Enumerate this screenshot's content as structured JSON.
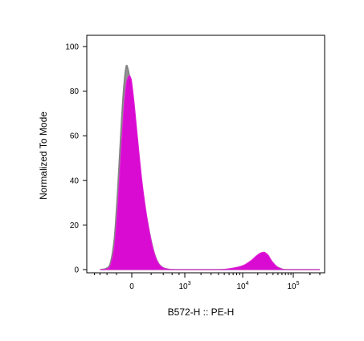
{
  "chart_data": {
    "type": "area",
    "title": "",
    "xlabel": "B572-H :: PE-H",
    "ylabel": "Normalized To Mode",
    "x_scale": "biexponential",
    "y_range": [
      0,
      100
    ],
    "y_ticks": [
      0,
      20,
      40,
      60,
      80,
      100
    ],
    "x_tick_labels": [
      {
        "value": 0,
        "base": "0",
        "exp": ""
      },
      {
        "value": 1000,
        "base": "10",
        "exp": "3"
      },
      {
        "value": 10000,
        "base": "10",
        "exp": "4"
      },
      {
        "value": 100000,
        "base": "10",
        "exp": "5"
      }
    ],
    "legend": "none",
    "grid": false,
    "series": [
      {
        "color": "#808080",
        "fill": "#8a8a8a",
        "points": [
          [
            -600,
            0
          ],
          [
            -420,
            0.5
          ],
          [
            -320,
            3
          ],
          [
            -240,
            14
          ],
          [
            -180,
            36
          ],
          [
            -130,
            62
          ],
          [
            -90,
            82
          ],
          [
            -60,
            91
          ],
          [
            -40,
            90
          ],
          [
            -20,
            86
          ],
          [
            0,
            80
          ],
          [
            20,
            70
          ],
          [
            50,
            55
          ],
          [
            90,
            38
          ],
          [
            140,
            24
          ],
          [
            200,
            13
          ],
          [
            260,
            6
          ],
          [
            320,
            2.5
          ],
          [
            400,
            0.8
          ],
          [
            500,
            0.2
          ],
          [
            700,
            0
          ],
          [
            4000,
            0
          ],
          [
            6000,
            0.3
          ],
          [
            8500,
            1.0
          ],
          [
            11000,
            1.8
          ],
          [
            15000,
            3.5
          ],
          [
            19000,
            5.5
          ],
          [
            24000,
            7.0
          ],
          [
            30000,
            6.5
          ],
          [
            38000,
            3.5
          ],
          [
            48000,
            1.2
          ],
          [
            60000,
            0.3
          ],
          [
            75000,
            0
          ],
          [
            300000,
            0
          ]
        ]
      },
      {
        "color": "#e020d8",
        "fill": "#e000d8",
        "points": [
          [
            -600,
            0
          ],
          [
            -420,
            0.3
          ],
          [
            -320,
            2
          ],
          [
            -240,
            10
          ],
          [
            -180,
            28
          ],
          [
            -130,
            52
          ],
          [
            -90,
            72
          ],
          [
            -60,
            83
          ],
          [
            -40,
            86
          ],
          [
            -25,
            87
          ],
          [
            -10,
            86
          ],
          [
            0,
            84
          ],
          [
            20,
            74
          ],
          [
            50,
            58
          ],
          [
            90,
            40
          ],
          [
            140,
            25
          ],
          [
            200,
            13
          ],
          [
            260,
            6
          ],
          [
            320,
            2.5
          ],
          [
            400,
            0.8
          ],
          [
            500,
            0.2
          ],
          [
            700,
            0
          ],
          [
            4000,
            0
          ],
          [
            6000,
            0.4
          ],
          [
            8500,
            1.2
          ],
          [
            11000,
            2.2
          ],
          [
            15000,
            4.2
          ],
          [
            19000,
            6.3
          ],
          [
            23000,
            7.5
          ],
          [
            27000,
            7.8
          ],
          [
            32000,
            6.5
          ],
          [
            38000,
            3.8
          ],
          [
            48000,
            1.3
          ],
          [
            60000,
            0.3
          ],
          [
            75000,
            0
          ],
          [
            300000,
            0
          ]
        ]
      }
    ]
  }
}
